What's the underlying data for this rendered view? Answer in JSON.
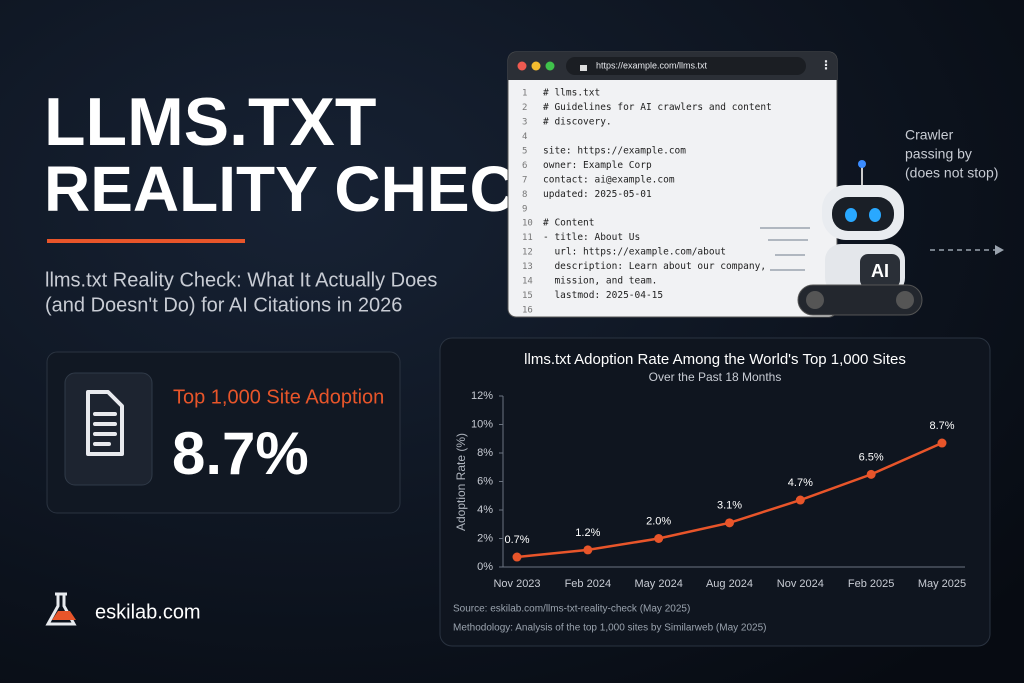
{
  "headline": {
    "lines": [
      "LLMS.TXT",
      "REALITY CHECK"
    ]
  },
  "subtitle": {
    "lines": [
      "llms.txt Reality Check: What It Actually Does",
      "(and Doesn't Do) for AI Citations in 2026"
    ]
  },
  "browser": {
    "url": "https://example.com/llms.txt",
    "lines": [
      {
        "n": 1,
        "text": "# llms.txt"
      },
      {
        "n": 2,
        "text": "# Guidelines for AI crawlers and content"
      },
      {
        "n": 3,
        "text": "# discovery."
      },
      {
        "n": 4
      },
      {
        "n": 5,
        "text": "site: https://example.com"
      },
      {
        "n": 6,
        "text": "owner: Example Corp"
      },
      {
        "n": 7,
        "text": "contact: ai@example.com"
      },
      {
        "n": 8,
        "text": "updated: 2025-05-01"
      },
      {
        "n": 9
      },
      {
        "n": 10,
        "text": "# Content"
      },
      {
        "n": 11,
        "text": "- title: About Us"
      },
      {
        "n": 12,
        "text": "  url: https://example.com/about"
      },
      {
        "n": 13,
        "text": "  description: Learn about our company,"
      },
      {
        "n": 14,
        "text": "  mission, and team."
      },
      {
        "n": 15,
        "text": "  lastmod: 2025-04-15"
      },
      {
        "n": 16
      }
    ]
  },
  "robot": {
    "badge": "AI",
    "caption": [
      "Crawler",
      "passing by",
      "(does not stop)"
    ]
  },
  "stat_card": {
    "label": "Top 1,000 Site Adoption",
    "value": "8.7%"
  },
  "brand": {
    "name": "eskilab.com"
  },
  "chart_data": {
    "type": "line",
    "title": "llms.txt Adoption Rate Among the World's Top 1,000 Sites",
    "subtitle": "Over the Past 18 Months",
    "y_label": "Adoption Rate (%)",
    "categories": [
      "Nov 2023",
      "Feb 2024",
      "May 2024",
      "Aug 2024",
      "Nov 2024",
      "Feb 2025",
      "May 2025"
    ],
    "values": [
      0.7,
      1.2,
      2.0,
      3.1,
      4.7,
      6.5,
      8.7
    ],
    "value_labels": [
      "0.7%",
      "1.2%",
      "2.0%",
      "3.1%",
      "4.7%",
      "6.5%",
      "8.7%"
    ],
    "color": "#e8552a",
    "ylim": [
      0,
      12
    ],
    "yticks": [
      {
        "value": 0,
        "label": "0%"
      },
      {
        "value": 2,
        "label": "2%"
      },
      {
        "value": 4,
        "label": "4%"
      },
      {
        "value": 6,
        "label": "6%"
      },
      {
        "value": 8,
        "label": "8%"
      },
      {
        "value": 10,
        "label": "10%"
      },
      {
        "value": 12,
        "label": "12%"
      }
    ],
    "grid": false,
    "notes": [
      "Source: eskilab.com/llms-txt-reality-check (May 2025)",
      "Methodology: Analysis of the top 1,000 sites by Similarweb (May 2025)"
    ]
  }
}
